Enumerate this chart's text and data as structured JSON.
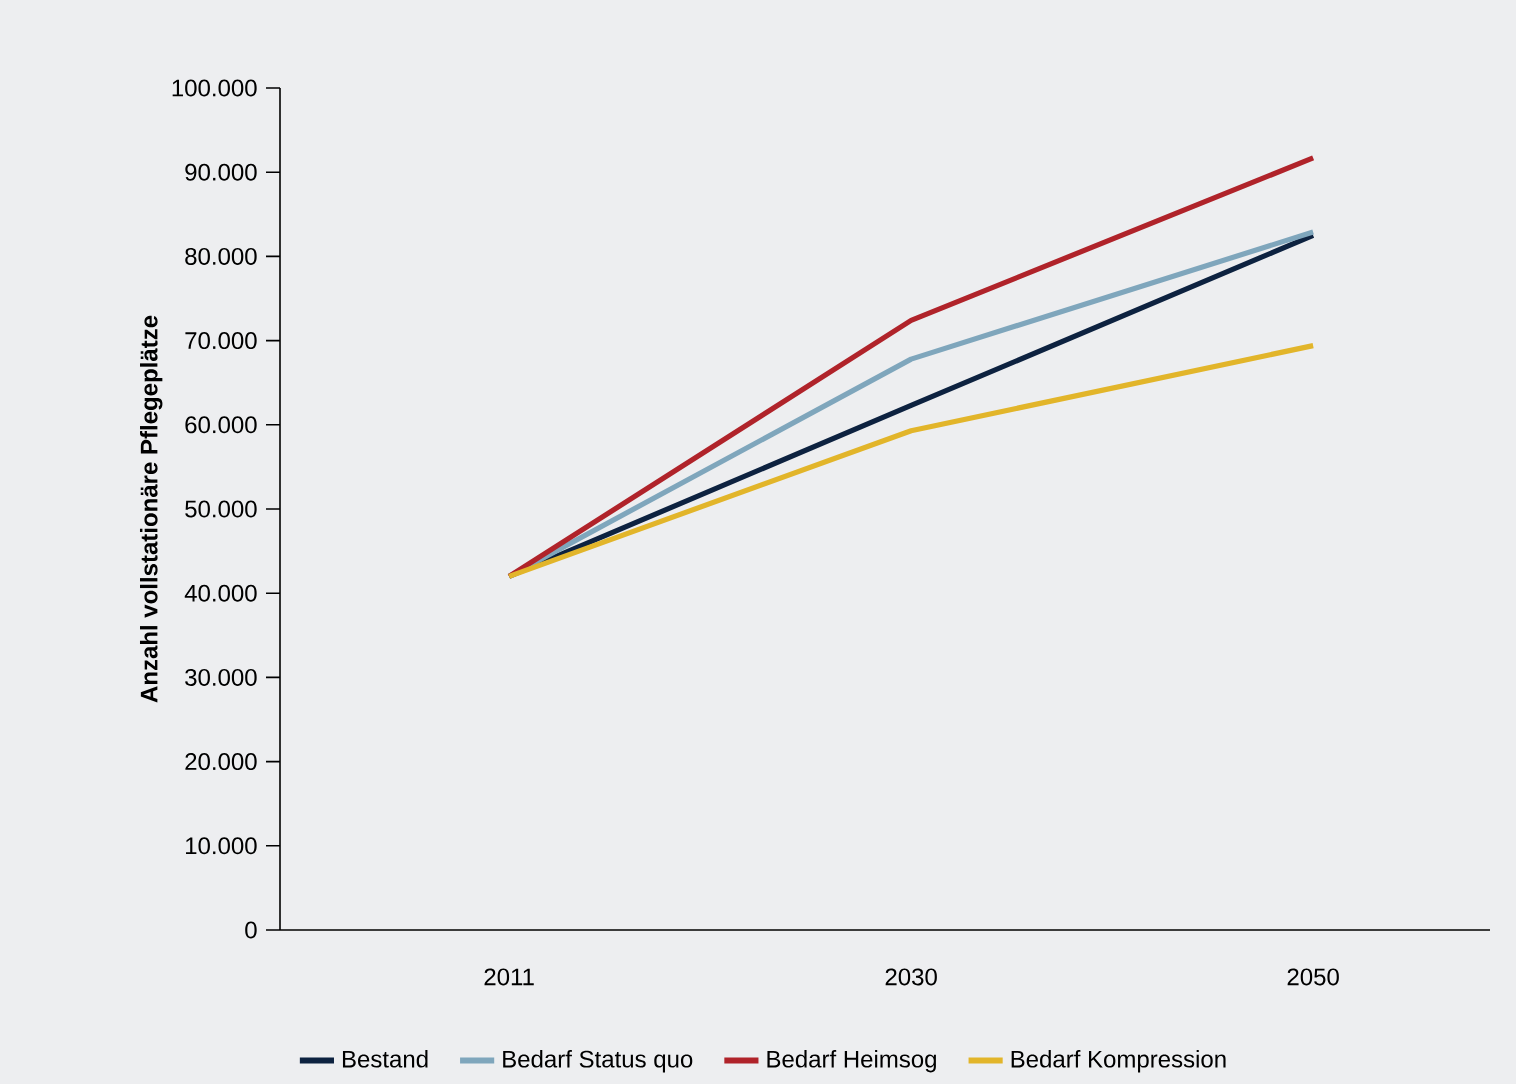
{
  "chart_data": {
    "type": "line",
    "ylabel": "Anzahl vollstationäre Pflegeplätze",
    "categories": [
      "2011",
      "2030",
      "2050"
    ],
    "series": [
      {
        "name": "Bestand",
        "color": "#0d2240",
        "values": [
          42000,
          62300,
          82500
        ]
      },
      {
        "name": "Bedarf Status quo",
        "color": "#7fa6bc",
        "values": [
          42000,
          67800,
          82900
        ]
      },
      {
        "name": "Bedarf Heimsog",
        "color": "#b0232a",
        "values": [
          42000,
          72400,
          91700
        ]
      },
      {
        "name": "Bedarf Kompression",
        "color": "#e2b52a",
        "values": [
          42000,
          59300,
          69400
        ]
      }
    ],
    "ylim": [
      0,
      100000
    ],
    "yticks": [
      {
        "value": 0,
        "label": "0"
      },
      {
        "value": 10000,
        "label": "10.000"
      },
      {
        "value": 20000,
        "label": "20.000"
      },
      {
        "value": 30000,
        "label": "30.000"
      },
      {
        "value": 40000,
        "label": "40.000"
      },
      {
        "value": 50000,
        "label": "50.000"
      },
      {
        "value": 60000,
        "label": "60.000"
      },
      {
        "value": 70000,
        "label": "70.000"
      },
      {
        "value": 80000,
        "label": "80.000"
      },
      {
        "value": 90000,
        "label": "90.000"
      },
      {
        "value": 100000,
        "label": "100.000"
      }
    ],
    "legend": "bottom",
    "grid": false,
    "marker": "none",
    "line_style": "solid"
  }
}
